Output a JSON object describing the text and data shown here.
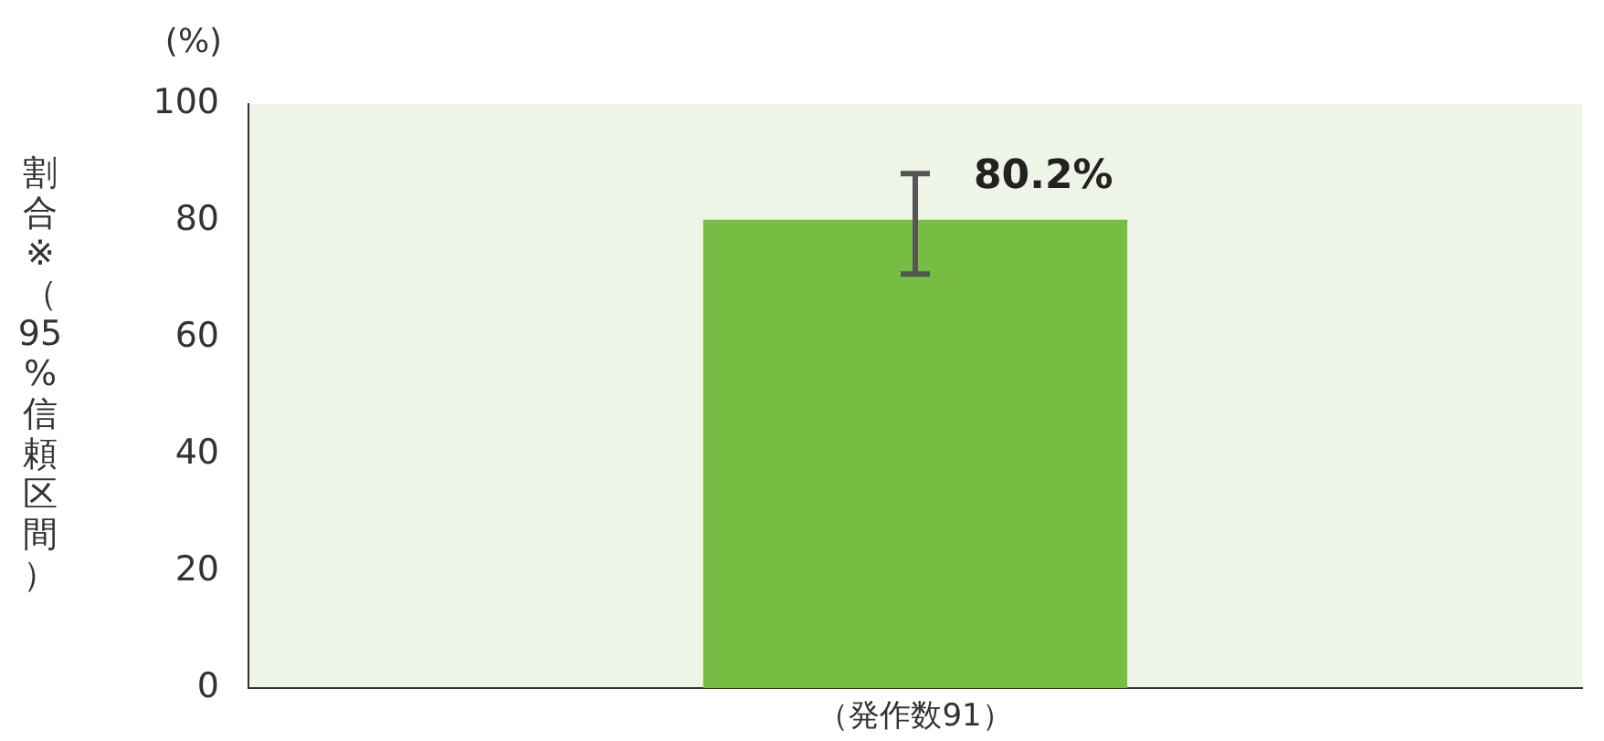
{
  "chart_data": {
    "type": "bar",
    "ylabel": "割合※（95%信頼区間）",
    "annotations": [
      "(%)"
    ],
    "categories": [
      "（発作数91）"
    ],
    "series": [
      {
        "color": "#77bd43",
        "values": [
          80.2
        ],
        "errors": [
          [
            70.9,
            88.1
          ]
        ],
        "value_labels": [
          "80.2%"
        ]
      }
    ],
    "ylim": [
      0,
      100
    ],
    "yticks": [
      0,
      20,
      40,
      60,
      80,
      100
    ],
    "grid": false,
    "legend": false
  }
}
